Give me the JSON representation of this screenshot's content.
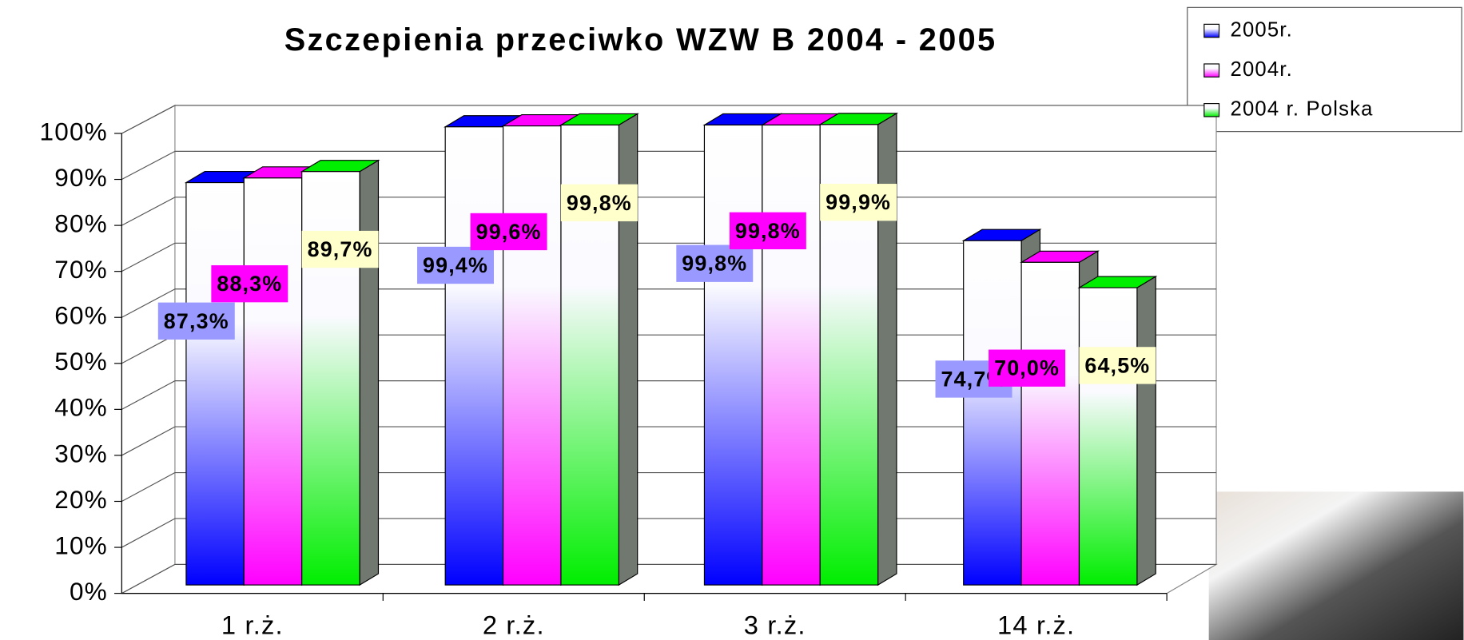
{
  "chart_data": {
    "type": "bar3d",
    "title": "Szczepienia przeciwko WZW B 2004 - 2005",
    "categories": [
      "1 r.ż.",
      "2 r.ż.",
      "3 r.ż.",
      "14 r.ż."
    ],
    "series": [
      {
        "name": "2005r.",
        "color": "#0000ff",
        "label_color": "#9999ff",
        "values": [
          87.3,
          99.4,
          99.8,
          74.7
        ],
        "value_labels": [
          "87,3%",
          "99,4%",
          "99,8%",
          "74,7%"
        ]
      },
      {
        "name": "2004r.",
        "color": "#ff00ff",
        "label_color": "#ff00ff",
        "values": [
          88.3,
          99.6,
          99.8,
          70.0
        ],
        "value_labels": [
          "88,3%",
          "99,6%",
          "99,8%",
          "70,0%"
        ]
      },
      {
        "name": "2004 r. Polska",
        "color": "#00ee00",
        "label_color": "#ffffcc",
        "values": [
          89.7,
          99.8,
          99.9,
          64.5
        ],
        "value_labels": [
          "89,7%",
          "99,8%",
          "99,9%",
          "64,5%"
        ]
      }
    ],
    "ylim": [
      0,
      100
    ],
    "yticks": [
      {
        "value": 0,
        "label": "0%"
      },
      {
        "value": 10,
        "label": "10%"
      },
      {
        "value": 20,
        "label": "20%"
      },
      {
        "value": 30,
        "label": "30%"
      },
      {
        "value": 40,
        "label": "40%"
      },
      {
        "value": 50,
        "label": "50%"
      },
      {
        "value": 60,
        "label": "60%"
      },
      {
        "value": 70,
        "label": "70%"
      },
      {
        "value": 80,
        "label": "80%"
      },
      {
        "value": 90,
        "label": "90%"
      },
      {
        "value": 100,
        "label": "100%"
      }
    ],
    "grid": true,
    "legend": "top-right"
  }
}
